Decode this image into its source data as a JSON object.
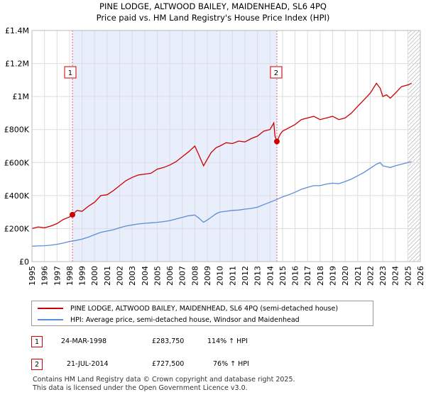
{
  "title_line1": "PINE LODGE, ALTWOOD BAILEY, MAIDENHEAD, SL6 4PQ",
  "title_line2": "Price paid vs. HM Land Registry's House Price Index (HPI)",
  "colors": {
    "property": "#cc0000",
    "hpi": "#5b8ed6",
    "shade": "#e8eefb",
    "grid": "#dddddd"
  },
  "chart_data": {
    "type": "line",
    "xlim": [
      1995,
      2026
    ],
    "ylim": [
      0,
      1400000
    ],
    "y_ticks": [
      {
        "value": 0,
        "label": "£0"
      },
      {
        "value": 200000,
        "label": "£200K"
      },
      {
        "value": 400000,
        "label": "£400K"
      },
      {
        "value": 600000,
        "label": "£600K"
      },
      {
        "value": 800000,
        "label": "£800K"
      },
      {
        "value": 1000000,
        "label": "£1M"
      },
      {
        "value": 1200000,
        "label": "£1.2M"
      },
      {
        "value": 1400000,
        "label": "£1.4M"
      }
    ],
    "x_ticks": [
      "1995",
      "1996",
      "1997",
      "1998",
      "1999",
      "2000",
      "2001",
      "2002",
      "2003",
      "2004",
      "2005",
      "2006",
      "2007",
      "2008",
      "2009",
      "2010",
      "2011",
      "2012",
      "2013",
      "2014",
      "2015",
      "2016",
      "2017",
      "2018",
      "2019",
      "2020",
      "2021",
      "2022",
      "2023",
      "2024",
      "2025",
      "2026"
    ],
    "shaded_span": [
      1998.23,
      2014.55
    ],
    "hatched_from": 2025.0,
    "series": [
      {
        "name": "PINE LODGE, ALTWOOD BAILEY, MAIDENHEAD, SL6 4PQ (semi-detached house)",
        "color": "#cc0000",
        "x": [
          1995.0,
          1995.5,
          1996.0,
          1996.5,
          1997.0,
          1997.5,
          1998.0,
          1998.23,
          1998.6,
          1999.0,
          1999.5,
          2000.0,
          2000.5,
          2001.0,
          2001.5,
          2002.0,
          2002.5,
          2003.0,
          2003.5,
          2004.0,
          2004.5,
          2005.0,
          2005.5,
          2006.0,
          2006.5,
          2007.0,
          2007.5,
          2008.0,
          2008.3,
          2008.7,
          2009.0,
          2009.3,
          2009.7,
          2010.0,
          2010.5,
          2011.0,
          2011.5,
          2012.0,
          2012.5,
          2013.0,
          2013.5,
          2014.0,
          2014.3,
          2014.4,
          2014.55,
          2014.8,
          2015.0,
          2015.5,
          2016.0,
          2016.5,
          2017.0,
          2017.5,
          2018.0,
          2018.5,
          2019.0,
          2019.5,
          2020.0,
          2020.5,
          2021.0,
          2021.5,
          2022.0,
          2022.5,
          2022.8,
          2023.0,
          2023.3,
          2023.6,
          2024.0,
          2024.5,
          2025.0,
          2025.3
        ],
        "values": [
          200000,
          210000,
          205000,
          215000,
          230000,
          255000,
          270000,
          283750,
          310000,
          305000,
          335000,
          360000,
          400000,
          405000,
          430000,
          460000,
          490000,
          510000,
          525000,
          530000,
          535000,
          560000,
          570000,
          585000,
          605000,
          635000,
          665000,
          700000,
          650000,
          580000,
          620000,
          660000,
          690000,
          700000,
          720000,
          715000,
          730000,
          725000,
          745000,
          760000,
          790000,
          800000,
          840000,
          760000,
          727500,
          770000,
          790000,
          810000,
          830000,
          860000,
          870000,
          880000,
          860000,
          870000,
          880000,
          860000,
          870000,
          900000,
          940000,
          980000,
          1020000,
          1080000,
          1050000,
          1000000,
          1010000,
          990000,
          1020000,
          1060000,
          1070000,
          1080000
        ]
      },
      {
        "name": "HPI: Average price, semi-detached house, Windsor and Maidenhead",
        "color": "#5b8ed6",
        "x": [
          1995.0,
          1995.5,
          1996.0,
          1996.5,
          1997.0,
          1997.5,
          1998.0,
          1998.5,
          1999.0,
          1999.5,
          2000.0,
          2000.5,
          2001.0,
          2001.5,
          2002.0,
          2002.5,
          2003.0,
          2003.5,
          2004.0,
          2004.5,
          2005.0,
          2005.5,
          2006.0,
          2006.5,
          2007.0,
          2007.5,
          2008.0,
          2008.3,
          2008.7,
          2009.0,
          2009.3,
          2009.7,
          2010.0,
          2010.5,
          2011.0,
          2011.5,
          2012.0,
          2012.5,
          2013.0,
          2013.5,
          2014.0,
          2014.5,
          2015.0,
          2015.5,
          2016.0,
          2016.5,
          2017.0,
          2017.5,
          2018.0,
          2018.5,
          2019.0,
          2019.5,
          2020.0,
          2020.5,
          2021.0,
          2021.5,
          2022.0,
          2022.5,
          2022.8,
          2023.0,
          2023.3,
          2023.6,
          2024.0,
          2024.5,
          2025.0,
          2025.3
        ],
        "values": [
          93000,
          95000,
          96000,
          99000,
          105000,
          112000,
          122000,
          128000,
          136000,
          148000,
          163000,
          177000,
          185000,
          193000,
          205000,
          215000,
          222000,
          228000,
          232000,
          235000,
          238000,
          242000,
          248000,
          258000,
          268000,
          278000,
          282000,
          265000,
          238000,
          252000,
          268000,
          290000,
          300000,
          305000,
          310000,
          312000,
          318000,
          322000,
          330000,
          345000,
          360000,
          375000,
          392000,
          405000,
          420000,
          438000,
          450000,
          460000,
          460000,
          470000,
          475000,
          472000,
          485000,
          500000,
          520000,
          540000,
          565000,
          590000,
          600000,
          580000,
          575000,
          570000,
          580000,
          590000,
          600000,
          605000
        ]
      }
    ],
    "sales": [
      {
        "label": "1",
        "x": 1998.23,
        "price": 283750
      },
      {
        "label": "2",
        "x": 2014.55,
        "price": 727500
      }
    ]
  },
  "legend": {
    "property_label": "PINE LODGE, ALTWOOD BAILEY, MAIDENHEAD, SL6 4PQ (semi-detached house)",
    "hpi_label": "HPI: Average price, semi-detached house, Windsor and Maidenhead"
  },
  "transactions": [
    {
      "num": "1",
      "date": "24-MAR-1998",
      "price": "£283,750",
      "hpi": "114% ↑ HPI"
    },
    {
      "num": "2",
      "date": "21-JUL-2014",
      "price": "£727,500",
      "hpi": "76% ↑ HPI"
    }
  ],
  "footer_line1": "Contains HM Land Registry data © Crown copyright and database right 2025.",
  "footer_line2": "This data is licensed under the Open Government Licence v3.0."
}
